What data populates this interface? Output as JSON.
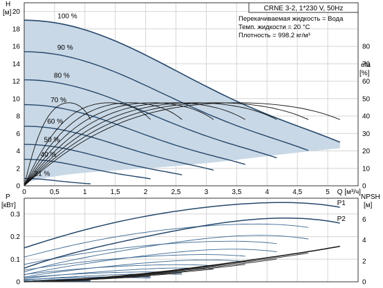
{
  "chart_data": [
    {
      "type": "line",
      "panel": "head",
      "title": "CRNE 3-2, 1*230 V, 50Hz",
      "info": [
        "Перекачиваемая жидкость = Вода",
        "Темп. жидкости = 20 °C",
        "Плотность = 998.2 кг/м³"
      ],
      "xlabel": "Q [м³/ч]",
      "xlim": [
        0,
        5.5
      ],
      "xticks": [
        "0",
        "0,5",
        "1",
        "1,5",
        "2",
        "2,5",
        "3",
        "3,5",
        "4",
        "4,5",
        "5"
      ],
      "ylabel_left": {
        "name": "H",
        "unit": "[м]"
      },
      "ylim_left": [
        0,
        21
      ],
      "yticks_left": [
        "0",
        "2",
        "4",
        "6",
        "8",
        "10",
        "12",
        "14",
        "16",
        "18",
        "20"
      ],
      "ylabel_right": {
        "name": "eta",
        "unit": "[%]"
      },
      "ylim_right": [
        0,
        105
      ],
      "yticks_right": [
        "0",
        "10",
        "20",
        "30",
        "40",
        "50",
        "60",
        "70",
        "80"
      ],
      "grid": true,
      "speed_labels": [
        "100 %",
        "90 %",
        "80 %",
        "70 %",
        "60 %",
        "50 %",
        "40 %",
        "21 %"
      ],
      "speed_fractions": [
        1.0,
        0.9,
        0.8,
        0.7,
        0.6,
        0.5,
        0.4,
        0.21
      ],
      "head_curve_100": {
        "x": [
          0,
          1,
          2,
          3,
          4,
          5.2
        ],
        "y": [
          19.0,
          17.9,
          15.0,
          11.4,
          8.2,
          5.0
        ]
      },
      "efficiency_curve_100": {
        "x": [
          0,
          1,
          2,
          3,
          4,
          5.2
        ],
        "y": [
          0,
          26,
          41,
          47,
          47,
          38
        ]
      },
      "operating_area_lower_bound": {
        "x": [
          0,
          1,
          2,
          3,
          4,
          5.2
        ],
        "y": [
          0.3,
          1.5,
          2.0,
          2.6,
          3.4,
          4.3
        ]
      }
    },
    {
      "type": "line",
      "panel": "power_npsh",
      "ylabel_left": {
        "name": "P",
        "unit": "[кВт]"
      },
      "ylim_left": [
        0,
        0.37
      ],
      "yticks_left": [
        "0",
        "0.1",
        "0.2",
        "0.3"
      ],
      "ylabel_right": {
        "name": "NPSH",
        "unit": "[м]"
      },
      "ylim_right": [
        0,
        8
      ],
      "yticks_right": [
        "0",
        "2",
        "4",
        "6"
      ],
      "xlim": [
        0,
        5.5
      ],
      "grid": true,
      "series": [
        {
          "name": "P1",
          "x": [
            0,
            1,
            2,
            3,
            4,
            5.2
          ],
          "y": [
            0.15,
            0.23,
            0.29,
            0.33,
            0.35,
            0.33
          ]
        },
        {
          "name": "P2",
          "x": [
            0,
            1,
            2,
            3,
            4,
            5.2
          ],
          "y": [
            0.06,
            0.14,
            0.2,
            0.25,
            0.28,
            0.26
          ]
        },
        {
          "name": "",
          "x": [
            0,
            1,
            2,
            3,
            4,
            5.2
          ],
          "y": [
            0.0,
            0.3,
            0.8,
            1.5,
            2.3,
            3.4
          ]
        }
      ]
    }
  ]
}
